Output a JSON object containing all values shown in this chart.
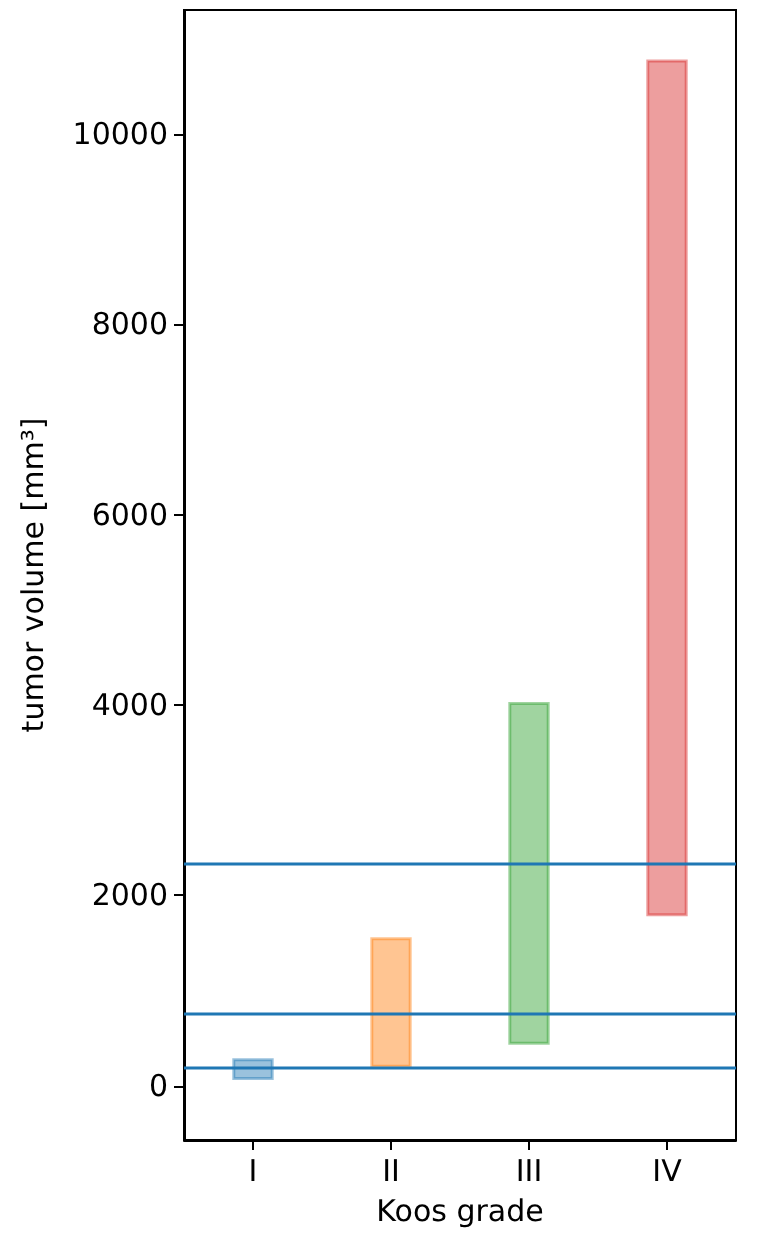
{
  "chart_data": {
    "type": "bar",
    "xlabel": "Koos grade",
    "ylabel": "tumor volume [mm³]",
    "categories": [
      "I",
      "II",
      "III",
      "IV"
    ],
    "values": [
      230,
      1370,
      3600,
      9000
    ],
    "base": [
      60,
      190,
      430,
      1780
    ],
    "colors": [
      "#1f77b4",
      "#ff7f0e",
      "#2ca02c",
      "#d62728"
    ],
    "ylim": [
      -570,
      11300
    ],
    "yticks": [
      0,
      2000,
      4000,
      6000,
      8000,
      10000
    ],
    "ref_lines": [
      {
        "axis": "y",
        "value": 190,
        "color": "#1f77b4"
      },
      {
        "axis": "y",
        "value": 760,
        "color": "#1f77b4"
      },
      {
        "axis": "y",
        "value": 2340,
        "color": "#1f77b4"
      }
    ],
    "grid": false
  }
}
